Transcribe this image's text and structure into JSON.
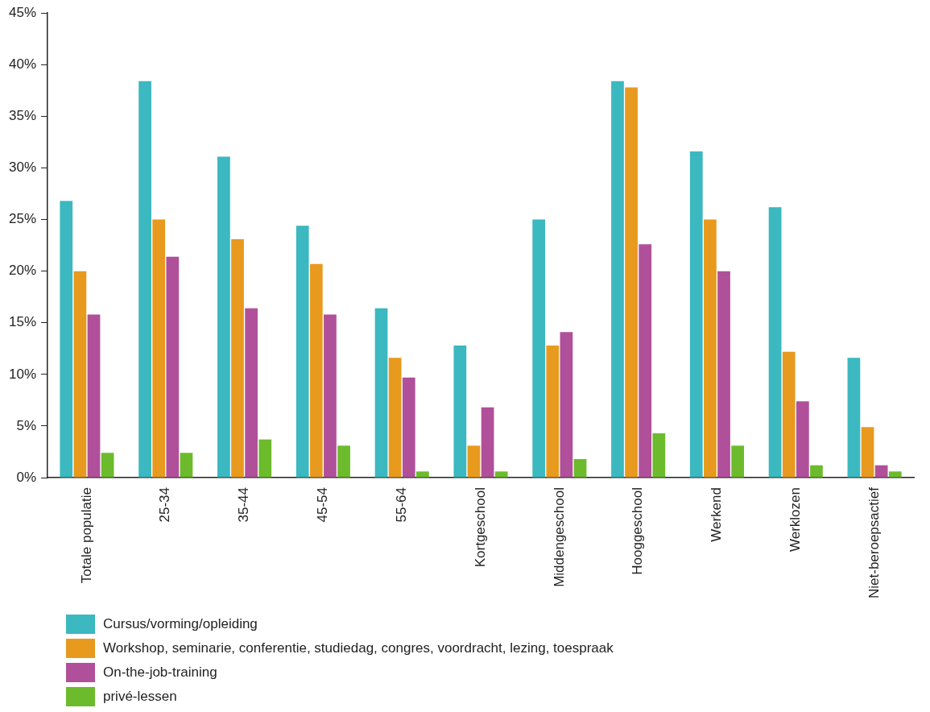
{
  "chart_data": {
    "type": "bar",
    "categories": [
      "Totale populatie",
      "25-34",
      "35-44",
      "45-54",
      "55-64",
      "Kortgeschool",
      "Middengeschool",
      "Hooggeschool",
      "Werkend",
      "Werklozen",
      "Niet-beroepsactief"
    ],
    "series": [
      {
        "name": "Cursus/vorming/opleiding",
        "color": "#3bb8c0",
        "values": [
          26.8,
          38.4,
          31.1,
          24.4,
          16.4,
          12.8,
          25.0,
          38.4,
          31.6,
          26.2,
          11.6
        ]
      },
      {
        "name": "Workshop, seminarie, conferentie, studiedag, congres, voordracht, lezing, toespraak",
        "color": "#e89a1e",
        "values": [
          20.0,
          25.0,
          23.1,
          20.7,
          11.6,
          3.1,
          12.8,
          37.8,
          25.0,
          12.2,
          4.9
        ]
      },
      {
        "name": "On-the-job-training",
        "color": "#b0509a",
        "values": [
          15.8,
          21.4,
          16.4,
          15.8,
          9.7,
          6.8,
          14.1,
          22.6,
          20.0,
          7.4,
          1.2
        ]
      },
      {
        "name": "privé-lessen",
        "color": "#6cbb2c",
        "values": [
          2.4,
          2.4,
          3.7,
          3.1,
          0.6,
          0.6,
          1.8,
          4.3,
          3.1,
          1.2,
          0.6
        ]
      }
    ],
    "ylim": [
      0,
      45
    ],
    "yticks": [
      {
        "value": 0,
        "label": "0%"
      },
      {
        "value": 5,
        "label": "5%"
      },
      {
        "value": 10,
        "label": "10%"
      },
      {
        "value": 15,
        "label": "15%"
      },
      {
        "value": 20,
        "label": "20%"
      },
      {
        "value": 25,
        "label": "25%"
      },
      {
        "value": 30,
        "label": "30%"
      },
      {
        "value": 35,
        "label": "35%"
      },
      {
        "value": 40,
        "label": "40%"
      },
      {
        "value": 45,
        "label": "45%"
      }
    ],
    "grid": false,
    "legend": "bottom"
  }
}
